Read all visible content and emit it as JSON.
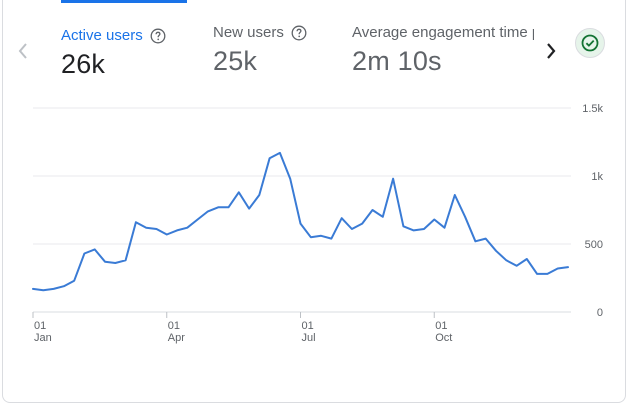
{
  "metrics": [
    {
      "label": "Active users",
      "value": "26k"
    },
    {
      "label": "New users",
      "value": "25k"
    },
    {
      "label": "Average engagement time per active user",
      "value": "2m 10s"
    }
  ],
  "icons": {
    "prev": "chevron-left-icon",
    "next": "chevron-right-icon",
    "help": "help-circle-icon",
    "status": "check-circle-icon"
  },
  "colors": {
    "accent": "#1a73e8",
    "line": "#3a7bd5",
    "grid": "#e8eaed",
    "muted": "#5f6368",
    "success": "#137333"
  },
  "chart_data": {
    "type": "line",
    "title": "",
    "xlabel": "",
    "ylabel": "",
    "ylim": [
      0,
      1500
    ],
    "y_ticks": [
      {
        "value": 0,
        "label": "0"
      },
      {
        "value": 500,
        "label": "500"
      },
      {
        "value": 1000,
        "label": "1k"
      },
      {
        "value": 1500,
        "label": "1.5k"
      }
    ],
    "x_ticks": [
      {
        "index": 0,
        "day": "01",
        "month": "Jan"
      },
      {
        "index": 13,
        "day": "01",
        "month": "Apr"
      },
      {
        "index": 26,
        "day": "01",
        "month": "Jul"
      },
      {
        "index": 39,
        "day": "01",
        "month": "Oct"
      }
    ],
    "series": [
      {
        "name": "Active users",
        "values": [
          170,
          160,
          170,
          190,
          230,
          430,
          460,
          370,
          360,
          380,
          660,
          620,
          610,
          570,
          600,
          620,
          680,
          740,
          770,
          770,
          880,
          760,
          860,
          1130,
          1170,
          980,
          650,
          550,
          560,
          540,
          690,
          610,
          650,
          750,
          700,
          980,
          630,
          600,
          610,
          680,
          620,
          860,
          700,
          520,
          540,
          450,
          380,
          340,
          390,
          280,
          280,
          320,
          330
        ]
      }
    ]
  }
}
